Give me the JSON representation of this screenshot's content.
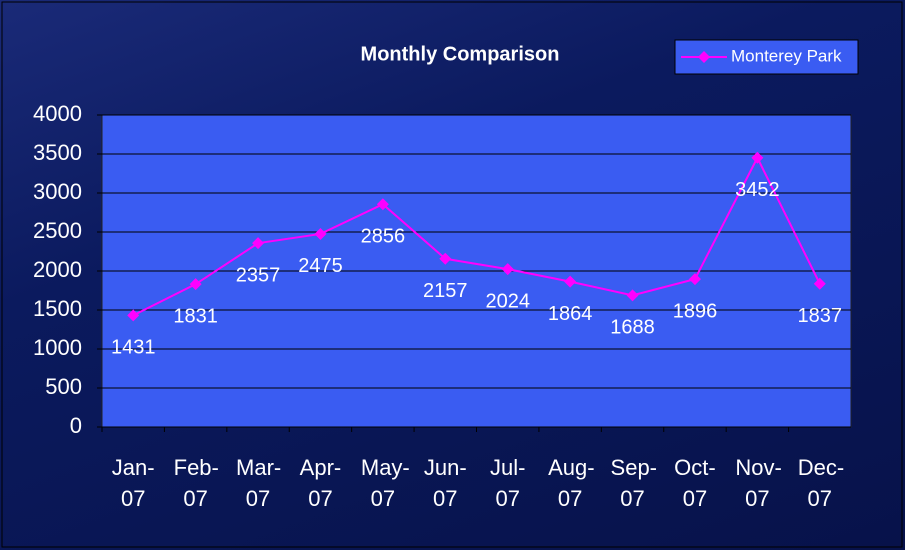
{
  "chart_data": {
    "type": "line",
    "title": "Monthly Comparison",
    "categories": [
      "Jan-07",
      "Feb-07",
      "Mar-07",
      "Apr-07",
      "May-07",
      "Jun-07",
      "Jul-07",
      "Aug-07",
      "Sep-07",
      "Oct-07",
      "Nov-07",
      "Dec-07"
    ],
    "series": [
      {
        "name": "Monterey Park",
        "color": "#ff00ff",
        "values": [
          1431,
          1831,
          2357,
          2475,
          2856,
          2157,
          2024,
          1864,
          1688,
          1896,
          3452,
          1837
        ]
      }
    ],
    "ylim": [
      0,
      4000
    ],
    "yticks": [
      0,
      500,
      1000,
      1500,
      2000,
      2500,
      3000,
      3500,
      4000
    ],
    "grid": true,
    "legend": "top-right"
  }
}
